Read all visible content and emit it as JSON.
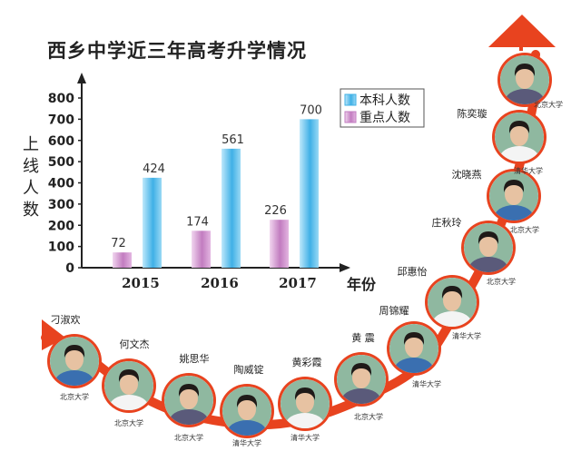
{
  "chart_data": {
    "type": "bar",
    "title": "西乡中学近三年高考升学情况",
    "xlabel": "年份",
    "ylabel": "上线人数",
    "categories": [
      "2015",
      "2016",
      "2017"
    ],
    "ylim": [
      0,
      800
    ],
    "yticks": [
      0,
      100,
      200,
      300,
      400,
      500,
      600,
      700,
      800
    ],
    "legend_position": "top-right",
    "series": [
      {
        "name": "本科人数",
        "values": [
          424,
          561,
          700
        ],
        "color": "#3fb0e6"
      },
      {
        "name": "重点人数",
        "values": [
          72,
          174,
          226
        ],
        "color": "#c27cc0"
      }
    ]
  },
  "students": [
    {
      "name": "刁淑欢",
      "school": "北京大学"
    },
    {
      "name": "何文杰",
      "school": "北京大学"
    },
    {
      "name": "姚思华",
      "school": "北京大学"
    },
    {
      "name": "陶威锭",
      "school": "清华大学"
    },
    {
      "name": "黄彩霞",
      "school": "清华大学"
    },
    {
      "name": "黄 震",
      "school": "北京大学"
    },
    {
      "name": "周锦耀",
      "school": "清华大学"
    },
    {
      "name": "邱惠怡",
      "school": "清华大学"
    },
    {
      "name": "庄秋玲",
      "school": "北京大学"
    },
    {
      "name": "沈晓燕",
      "school": "北京大学"
    },
    {
      "name": "陈奕璇",
      "school": "清华大学"
    },
    {
      "name": "",
      "school": "北京大学"
    }
  ],
  "colors": {
    "arrow": "#e8431f",
    "ring": "#ffffff"
  }
}
